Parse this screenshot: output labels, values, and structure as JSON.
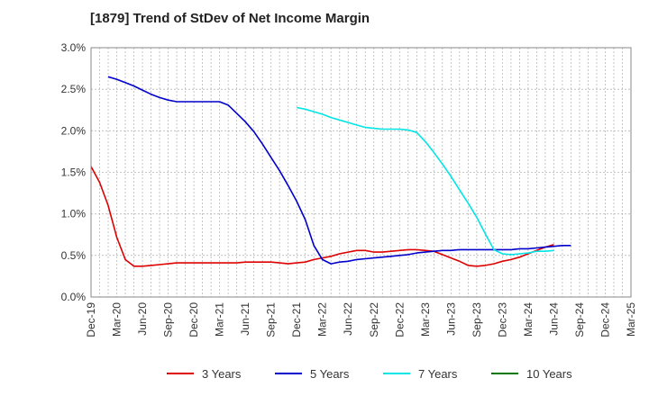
{
  "chart_data": {
    "type": "line",
    "title": "[1879]  Trend of StDev of Net Income Margin",
    "xlabel": "",
    "ylabel": "",
    "x_ticks": [
      "Dec-19",
      "Mar-20",
      "Jun-20",
      "Sep-20",
      "Dec-20",
      "Mar-21",
      "Jun-21",
      "Sep-21",
      "Dec-21",
      "Mar-22",
      "Jun-22",
      "Sep-22",
      "Dec-22",
      "Mar-23",
      "Jun-23",
      "Sep-23",
      "Dec-23",
      "Mar-24",
      "Jun-24",
      "Sep-24",
      "Dec-24",
      "Mar-25"
    ],
    "y_ticks": [
      "0.0%",
      "0.5%",
      "1.0%",
      "1.5%",
      "2.0%",
      "2.5%",
      "3.0%"
    ],
    "ylim": [
      0,
      3.0
    ],
    "grid": true,
    "legend_position": "bottom",
    "series": [
      {
        "name": "3 Years",
        "color": "#dd0000",
        "start_index": 0,
        "values": [
          1.57,
          1.38,
          1.1,
          0.72,
          0.45,
          0.37,
          0.37,
          0.38,
          0.39,
          0.4,
          0.41,
          0.41,
          0.41,
          0.41,
          0.41,
          0.41,
          0.41,
          0.41,
          0.42,
          0.42,
          0.42,
          0.42,
          0.41,
          0.4,
          0.41,
          0.42,
          0.45,
          0.47,
          0.49,
          0.52,
          0.54,
          0.56,
          0.56,
          0.54,
          0.54,
          0.55,
          0.56,
          0.57,
          0.57,
          0.56,
          0.55,
          0.51,
          0.47,
          0.43,
          0.38,
          0.37,
          0.38,
          0.4,
          0.43,
          0.45,
          0.48,
          0.52,
          0.56,
          0.6,
          0.63
        ]
      },
      {
        "name": "5 Years",
        "color": "#0000cc",
        "start_index": 2,
        "values": [
          2.65,
          2.62,
          2.58,
          2.54,
          2.49,
          2.44,
          2.4,
          2.37,
          2.35,
          2.35,
          2.35,
          2.35,
          2.35,
          2.35,
          2.31,
          2.21,
          2.11,
          1.99,
          1.84,
          1.68,
          1.52,
          1.34,
          1.15,
          0.93,
          0.62,
          0.45,
          0.4,
          0.42,
          0.43,
          0.45,
          0.46,
          0.47,
          0.48,
          0.49,
          0.5,
          0.51,
          0.53,
          0.54,
          0.55,
          0.56,
          0.56,
          0.57,
          0.57,
          0.57,
          0.57,
          0.57,
          0.57,
          0.57,
          0.58,
          0.58,
          0.59,
          0.6,
          0.61,
          0.62,
          0.62
        ]
      },
      {
        "name": "7 Years",
        "color": "#00e5e5",
        "start_index": 24,
        "values": [
          2.28,
          2.26,
          2.23,
          2.2,
          2.16,
          2.13,
          2.1,
          2.07,
          2.04,
          2.03,
          2.02,
          2.02,
          2.02,
          2.01,
          1.98,
          1.87,
          1.74,
          1.6,
          1.45,
          1.29,
          1.13,
          0.96,
          0.76,
          0.57,
          0.52,
          0.51,
          0.52,
          0.53,
          0.55,
          0.55,
          0.56
        ]
      },
      {
        "name": "10 Years",
        "color": "#007700",
        "start_index": 0,
        "values": []
      }
    ]
  }
}
